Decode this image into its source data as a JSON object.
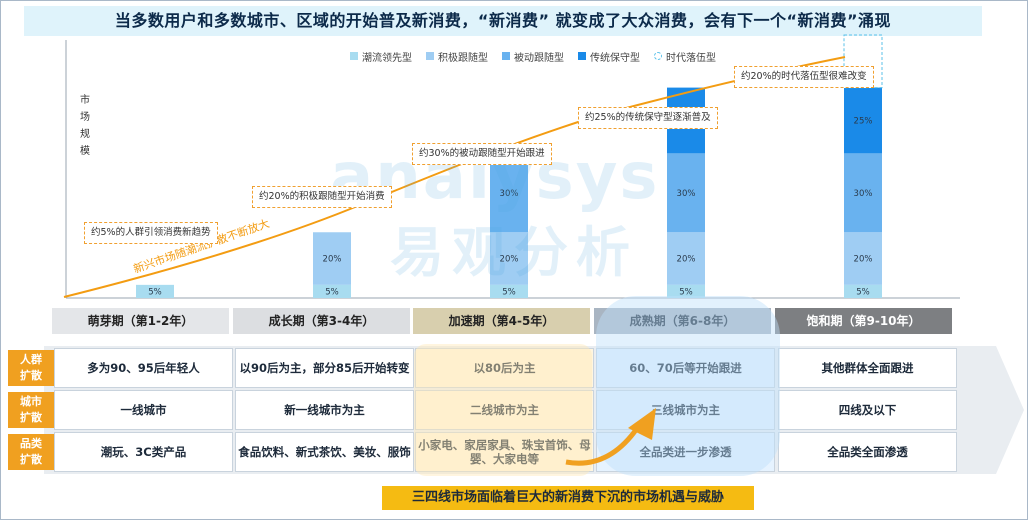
{
  "title": "当多数用户和多数城市、区域的开始普及新消费，“新消费” 就变成了大众消费，会有下一个“新消费”涌现",
  "chart_data": {
    "type": "bar",
    "stacked": true,
    "ylabel": "市场规模",
    "series": [
      {
        "name": "潮流领先型",
        "color": "#a8dcf0",
        "values": [
          5,
          5,
          5,
          5,
          5
        ],
        "labels": [
          "5%",
          "5%",
          "5%",
          "5%",
          "5%"
        ]
      },
      {
        "name": "积极跟随型",
        "color": "#9fcdf3",
        "values": [
          0,
          20,
          20,
          20,
          20
        ],
        "labels": [
          "",
          "20%",
          "20%",
          "20%",
          "20%"
        ]
      },
      {
        "name": "被动跟随型",
        "color": "#69b2ef",
        "values": [
          0,
          0,
          30,
          30,
          30
        ],
        "labels": [
          "",
          "",
          "30%",
          "30%",
          "30%"
        ]
      },
      {
        "name": "传统保守型",
        "color": "#1a8ae8",
        "values": [
          0,
          0,
          0,
          25,
          25
        ],
        "labels": [
          "",
          "",
          "",
          "25%",
          "25%"
        ]
      },
      {
        "name": "时代落伍型",
        "color": "#5bc2ea",
        "dashed": true,
        "values": [
          0,
          0,
          0,
          0,
          20
        ],
        "labels": [
          "",
          "",
          "",
          "",
          ""
        ]
      }
    ],
    "curve_label": "新兴市场随潮流扩散不断放大",
    "annotations": [
      "约5%的人群引领消费新趋势",
      "约20%的积极跟随型开始消费",
      "约30%的被动跟随型开始跟进",
      "约25%的传统保守型逐渐普及",
      "约20%的时代落伍型很难改变"
    ],
    "grid": false,
    "legend_position": "top"
  },
  "stages": [
    "萌芽期（第1-2年）",
    "成长期（第3-4年）",
    "加速期（第4-5年）",
    "成熟期（第6-8年）",
    "饱和期（第9-10年）"
  ],
  "rows": [
    {
      "label": "人群扩散",
      "cells": [
        "多为90、95后年轻人",
        "以90后为主，部分85后开始转变",
        "以80后为主",
        "60、70后等开始跟进",
        "其他群体全面跟进"
      ]
    },
    {
      "label": "城市扩散",
      "cells": [
        "一线城市",
        "新一线城市为主",
        "二线城市为主",
        "三线城市为主",
        "四线及以下"
      ]
    },
    {
      "label": "品类扩散",
      "cells": [
        "潮玩、3C类产品",
        "食品饮料、新式茶饮、美妆、服饰",
        "小家电、家居家具、珠宝首饰、母婴、大家电等",
        "全品类进一步渗透",
        "全品类全面渗透"
      ]
    }
  ],
  "bottom_banner": "三四线市场面临着巨大的新消费下沉的市场机遇与威胁",
  "watermark": {
    "line1": "analysys",
    "line2": "易观分析"
  },
  "colors": {
    "accent_orange": "#f0a020",
    "curve_orange": "#f39c12",
    "title_bg": "#dff3fb",
    "highlight_yellow": "#fff3d6",
    "highlight_blue": "#dcefff"
  }
}
